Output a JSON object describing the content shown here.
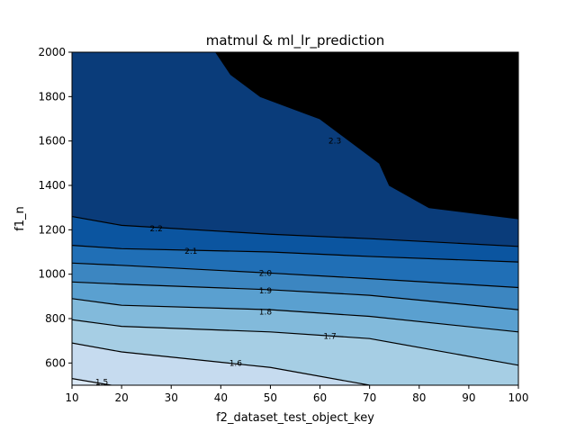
{
  "chart_data": {
    "type": "contour",
    "title": "matmul & ml_lr_prediction",
    "xlabel": "f2_dataset_test_object_key",
    "ylabel": "f1_n",
    "xlim": [
      10,
      100
    ],
    "ylim": [
      500,
      2000
    ],
    "xticks": [
      10,
      20,
      30,
      40,
      50,
      60,
      70,
      80,
      90,
      100
    ],
    "yticks": [
      600,
      800,
      1000,
      1200,
      1400,
      1600,
      1800,
      2000
    ],
    "grid": false,
    "colormap": "Blues",
    "band_colors": [
      "#dbe9f6",
      "#c6dbef",
      "#a6cee4",
      "#82badb",
      "#5aa0d0",
      "#3c86c1",
      "#206fb6",
      "#0b55a0",
      "#0a3c7a"
    ],
    "levels": [
      {
        "value": "1.5",
        "x": [
          10,
          20
        ],
        "y": [
          530,
          492
        ],
        "label_at": [
          16,
          515
        ]
      },
      {
        "value": "1.6",
        "x": [
          10,
          20,
          50,
          70
        ],
        "y": [
          690,
          650,
          580,
          500
        ],
        "label_at": [
          43,
          600
        ]
      },
      {
        "value": "1.7",
        "x": [
          10,
          20,
          50,
          70,
          100
        ],
        "y": [
          795,
          765,
          740,
          710,
          590
        ],
        "label_at": [
          62,
          720
        ]
      },
      {
        "value": "1.8",
        "x": [
          10,
          20,
          50,
          70,
          100
        ],
        "y": [
          890,
          860,
          840,
          810,
          740
        ],
        "label_at": [
          49,
          830
        ]
      },
      {
        "value": "1.9",
        "x": [
          10,
          20,
          50,
          70,
          100
        ],
        "y": [
          965,
          955,
          930,
          905,
          840
        ],
        "label_at": [
          49,
          925
        ]
      },
      {
        "value": "2.0",
        "x": [
          10,
          20,
          50,
          70,
          100
        ],
        "y": [
          1050,
          1040,
          1005,
          980,
          940
        ],
        "label_at": [
          49,
          1005
        ]
      },
      {
        "value": "2.1",
        "x": [
          10,
          20,
          50,
          70,
          100
        ],
        "y": [
          1130,
          1115,
          1100,
          1080,
          1055
        ],
        "label_at": [
          34,
          1105
        ]
      },
      {
        "value": "2.2",
        "x": [
          10,
          20,
          50,
          70,
          100
        ],
        "y": [
          1260,
          1220,
          1180,
          1160,
          1125
        ],
        "label_at": [
          27,
          1205
        ]
      },
      {
        "value": "2.3",
        "x": [
          39,
          42,
          48,
          60,
          72,
          74,
          82,
          100
        ],
        "y": [
          2000,
          1900,
          1800,
          1700,
          1500,
          1400,
          1300,
          1250
        ],
        "label_at": [
          63,
          1600
        ]
      }
    ]
  }
}
